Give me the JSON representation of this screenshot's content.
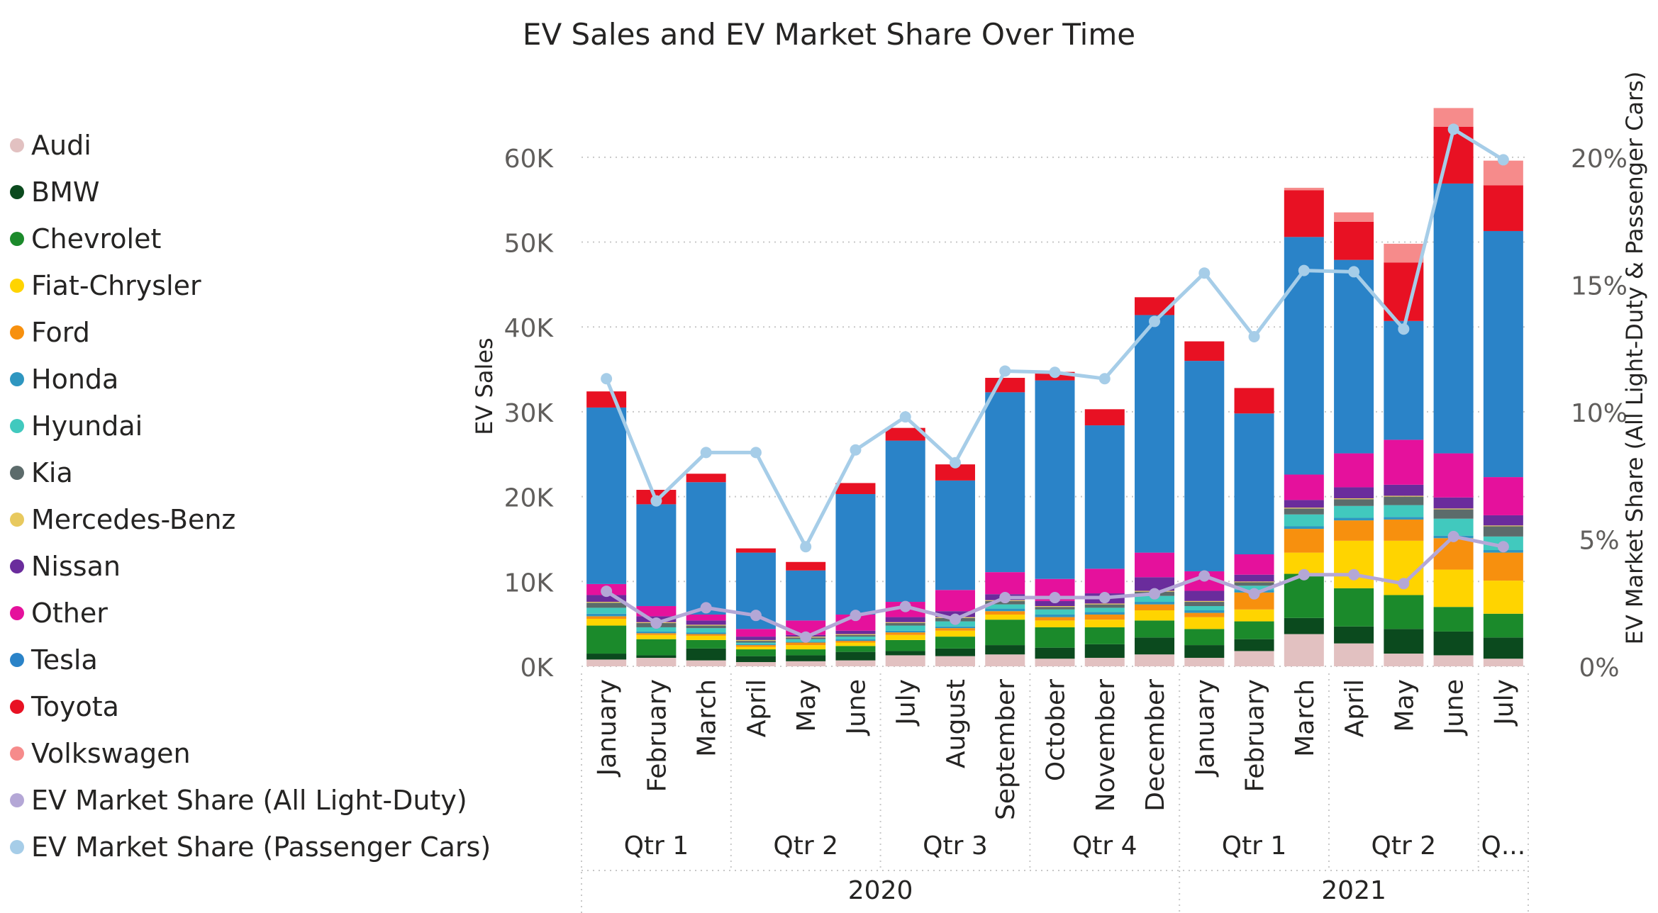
{
  "chart_data": {
    "type": "bar",
    "stacked": true,
    "title": "EV Sales and EV Market Share Over Time",
    "ylabel": "EV Sales",
    "y2label": "EV Market Share (All Light-Duty & Passenger Cars)",
    "ylim": [
      0,
      66000
    ],
    "y2lim": [
      0,
      0.22
    ],
    "yticks": [
      0,
      10000,
      20000,
      30000,
      40000,
      50000,
      60000
    ],
    "ytick_labels": [
      "0K",
      "10K",
      "20K",
      "30K",
      "40K",
      "50K",
      "60K"
    ],
    "y2ticks": [
      0,
      0.05,
      0.1,
      0.15,
      0.2
    ],
    "y2tick_labels": [
      "0%",
      "5%",
      "10%",
      "15%",
      "20%"
    ],
    "grid": true,
    "legend_position": "left",
    "categories": [
      "January",
      "February",
      "March",
      "April",
      "May",
      "June",
      "July",
      "August",
      "September",
      "October",
      "November",
      "December",
      "January",
      "February",
      "March",
      "April",
      "May",
      "June",
      "July"
    ],
    "quarters": [
      {
        "label": "Qtr 1",
        "months": 3
      },
      {
        "label": "Qtr 2",
        "months": 3
      },
      {
        "label": "Qtr 3",
        "months": 3
      },
      {
        "label": "Qtr 4",
        "months": 3
      },
      {
        "label": "Qtr 1",
        "months": 3
      },
      {
        "label": "Qtr 2",
        "months": 3
      },
      {
        "label": "Q...",
        "months": 1
      }
    ],
    "years": [
      {
        "label": "2020",
        "months": 12
      },
      {
        "label": "2021",
        "months": 7
      }
    ],
    "series": [
      {
        "name": "Audi",
        "color": "#E2C1C1",
        "values": [
          800,
          1000,
          700,
          500,
          600,
          700,
          1300,
          1200,
          1400,
          900,
          1000,
          1400,
          1000,
          1800,
          3800,
          2700,
          1500,
          1300,
          900
        ]
      },
      {
        "name": "BMW",
        "color": "#0B4A1E",
        "values": [
          700,
          300,
          1400,
          700,
          700,
          1000,
          500,
          900,
          1100,
          1300,
          1600,
          2000,
          1500,
          1400,
          1900,
          2000,
          2900,
          2800,
          2500
        ]
      },
      {
        "name": "Chevrolet",
        "color": "#1B8A2B",
        "values": [
          3300,
          1900,
          1000,
          800,
          700,
          700,
          1300,
          1400,
          3000,
          2400,
          2000,
          2000,
          1900,
          2100,
          5200,
          4500,
          4000,
          2900,
          2800
        ]
      },
      {
        "name": "Fiat-Chrysler",
        "color": "#FFD400",
        "values": [
          800,
          500,
          500,
          300,
          500,
          400,
          600,
          700,
          600,
          800,
          900,
          1200,
          1400,
          1400,
          2500,
          5600,
          6400,
          4400,
          3900
        ]
      },
      {
        "name": "Ford",
        "color": "#F7900E",
        "values": [
          300,
          200,
          200,
          200,
          300,
          200,
          300,
          300,
          400,
          400,
          600,
          700,
          500,
          2000,
          2800,
          2400,
          2500,
          3700,
          3300
        ]
      },
      {
        "name": "Honda",
        "color": "#2E96C0",
        "values": [
          300,
          200,
          200,
          100,
          100,
          200,
          200,
          200,
          300,
          300,
          300,
          300,
          300,
          300,
          300,
          300,
          300,
          300,
          300
        ]
      },
      {
        "name": "Hyundai",
        "color": "#41C9BE",
        "values": [
          700,
          500,
          500,
          200,
          300,
          300,
          600,
          600,
          500,
          600,
          500,
          700,
          500,
          500,
          1400,
          1400,
          1400,
          2000,
          1600
        ]
      },
      {
        "name": "Kia",
        "color": "#5C6B6B",
        "values": [
          600,
          500,
          300,
          200,
          200,
          200,
          300,
          400,
          400,
          300,
          400,
          500,
          500,
          400,
          700,
          800,
          1000,
          1100,
          1200
        ]
      },
      {
        "name": "Mercedes-Benz",
        "color": "#E8C95E",
        "values": [
          100,
          100,
          100,
          100,
          100,
          100,
          100,
          100,
          100,
          100,
          100,
          100,
          100,
          100,
          100,
          100,
          100,
          100,
          100
        ]
      },
      {
        "name": "Nissan",
        "color": "#6A2C9C",
        "values": [
          800,
          700,
          500,
          400,
          200,
          400,
          600,
          700,
          700,
          600,
          1200,
          1600,
          1200,
          800,
          900,
          1300,
          1300,
          1300,
          1200
        ]
      },
      {
        "name": "Other",
        "color": "#E5119C",
        "values": [
          1300,
          1200,
          700,
          900,
          1700,
          1900,
          1800,
          2500,
          2600,
          2600,
          2900,
          2900,
          2300,
          2400,
          3000,
          4000,
          5300,
          5200,
          4500
        ]
      },
      {
        "name": "Tesla",
        "color": "#2A83C8",
        "values": [
          20800,
          12000,
          15600,
          9000,
          5900,
          14200,
          19000,
          12900,
          21200,
          23400,
          16900,
          28000,
          24800,
          16600,
          28000,
          22800,
          14000,
          31800,
          29000
        ]
      },
      {
        "name": "Toyota",
        "color": "#E81123",
        "values": [
          1900,
          1700,
          1000,
          500,
          1000,
          1300,
          1500,
          1900,
          1700,
          1000,
          1900,
          2100,
          2300,
          3000,
          5500,
          4500,
          6900,
          6700,
          5400
        ]
      },
      {
        "name": "Volkswagen",
        "color": "#F68B8B",
        "values": [
          0,
          0,
          0,
          0,
          0,
          0,
          0,
          0,
          0,
          0,
          0,
          0,
          0,
          0,
          300,
          1100,
          2200,
          2200,
          2900
        ]
      }
    ],
    "lines": [
      {
        "name": "EV Market Share (All Light-Duty)",
        "color": "#B4A7D6",
        "axis": "y2",
        "values": [
          0.0295,
          0.017,
          0.023,
          0.02,
          0.0115,
          0.02,
          0.0235,
          0.0185,
          0.027,
          0.027,
          0.027,
          0.0285,
          0.0355,
          0.0285,
          0.036,
          0.036,
          0.0325,
          0.051,
          0.047
        ]
      },
      {
        "name": "EV Market Share (Passenger Cars)",
        "color": "#A6CDE8",
        "axis": "y2",
        "values": [
          0.113,
          0.065,
          0.084,
          0.084,
          0.047,
          0.085,
          0.098,
          0.08,
          0.116,
          0.1155,
          0.113,
          0.1355,
          0.1545,
          0.1295,
          0.1555,
          0.155,
          0.1325,
          0.211,
          0.199
        ]
      }
    ]
  }
}
